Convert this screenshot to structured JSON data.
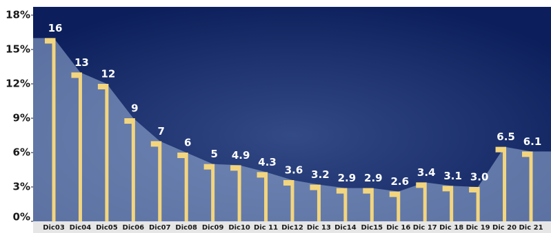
{
  "chart_data": {
    "type": "bar",
    "categories": [
      "Dic03",
      "Dic04",
      "Dic05",
      "Dic06",
      "Dic07",
      "Dic08",
      "Dic09",
      "Dic10",
      "Dic 11",
      "Dic12",
      "Dic 13",
      "Dic14",
      "Dic15",
      "Dic 16",
      "Dic 17",
      "Dic 18",
      "Dic 19",
      "Dic 20",
      "Dic 21"
    ],
    "values": [
      16,
      13,
      12,
      9,
      7,
      6,
      5,
      4.9,
      4.3,
      3.6,
      3.2,
      2.9,
      2.9,
      2.6,
      3.4,
      3.1,
      3.0,
      6.5,
      6.1
    ],
    "value_labels": [
      "16",
      "13",
      "12",
      "9",
      "7",
      "6",
      "5",
      "4.9",
      "4.3",
      "3.6",
      "3.2",
      "2.9",
      "2.9",
      "2.6",
      "3.4",
      "3.1",
      "3.0",
      "6.5",
      "6.1"
    ],
    "color": "#f3d57e",
    "area_color": "#9fb6da",
    "ylim": [
      0,
      18
    ],
    "yticks": [
      {
        "value": 0,
        "label": "0%"
      },
      {
        "value": 3,
        "label": "3%"
      },
      {
        "value": 6,
        "label": "6%"
      },
      {
        "value": 9,
        "label": "9%"
      },
      {
        "value": 12,
        "label": "12%"
      },
      {
        "value": 15,
        "label": "15%"
      },
      {
        "value": 18,
        "label": "18%"
      }
    ]
  }
}
